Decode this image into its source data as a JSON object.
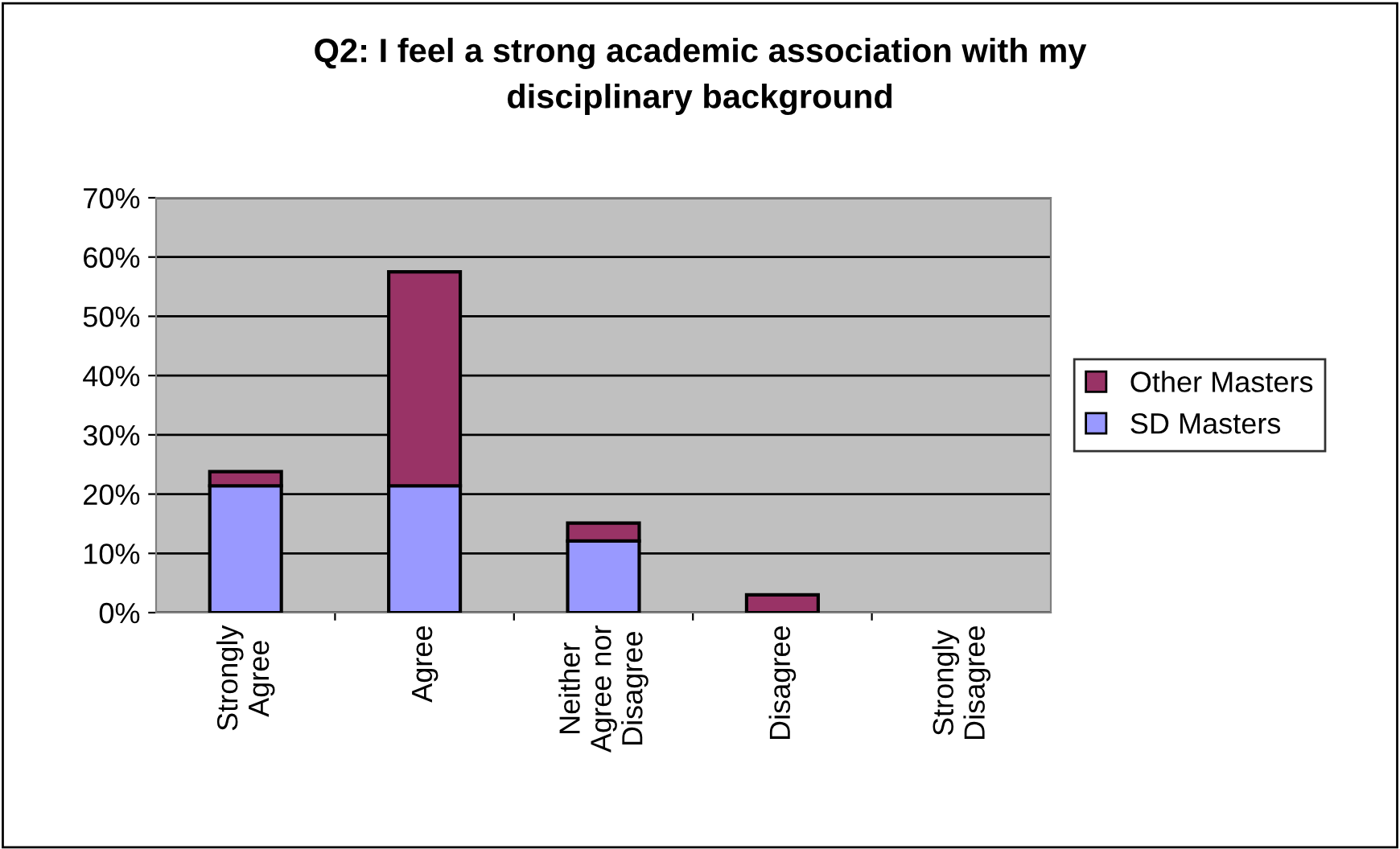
{
  "chart_data": {
    "type": "bar",
    "stacked": true,
    "title": "Q2: I feel a strong academic association with my disciplinary background",
    "categories": [
      "Strongly Agree",
      "Agree",
      "Neither Agree nor Disagree",
      "Disagree",
      "Strongly Disagree"
    ],
    "series": [
      {
        "name": "SD Masters",
        "color": "#9999ff",
        "values": [
          21.4,
          21.4,
          12.1,
          0,
          0
        ]
      },
      {
        "name": "Other Masters",
        "color": "#993366",
        "values": [
          2.4,
          36.1,
          3.0,
          3.0,
          0
        ]
      }
    ],
    "ylim": [
      0,
      70
    ],
    "yticks": [
      {
        "value": 0,
        "label": "0%"
      },
      {
        "value": 10,
        "label": "10%"
      },
      {
        "value": 20,
        "label": "20%"
      },
      {
        "value": 30,
        "label": "30%"
      },
      {
        "value": 40,
        "label": "40%"
      },
      {
        "value": 50,
        "label": "50%"
      },
      {
        "value": 60,
        "label": "60%"
      },
      {
        "value": 70,
        "label": "70%"
      }
    ],
    "grid": "y",
    "legend": "right"
  }
}
